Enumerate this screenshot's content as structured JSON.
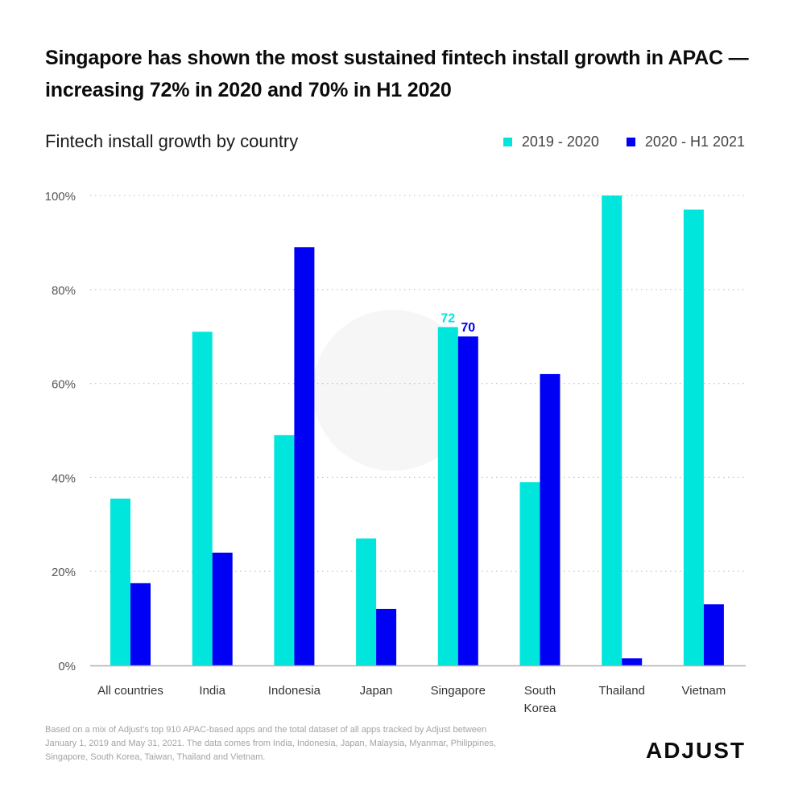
{
  "title": "Singapore has shown the most sustained fintech install growth in APAC — increasing 72% in 2020 and 70% in H1 2020",
  "subtitle": "Fintech install growth by country",
  "footnote": "Based on a mix of Adjust’s top 910 APAC-based apps and the total dataset of all apps tracked by Adjust between January 1, 2019 and May 31, 2021. The data comes from India, Indonesia, Japan, Malaysia, Myanmar, Philippines, Singapore, South Korea, Taiwan, Thailand and Vietnam.",
  "logo": "ADJUST",
  "colors": {
    "series1": "#00e6dc",
    "series2": "#0000f5",
    "grid": "#c8c8c8",
    "axis": "#b0b0b0",
    "tick_text": "#555555"
  },
  "chart_data": {
    "type": "bar",
    "title": "Fintech install growth by country",
    "xlabel": "",
    "ylabel": "",
    "ylim": [
      0,
      100
    ],
    "yticks": [
      0,
      20,
      40,
      60,
      80,
      100
    ],
    "ytick_labels": [
      "0%",
      "20%",
      "40%",
      "60%",
      "80%",
      "100%"
    ],
    "grid": true,
    "legend_position": "top-right",
    "categories": [
      "All countries",
      "India",
      "Indonesia",
      "Japan",
      "Singapore",
      "South Korea",
      "Thailand",
      "Vietnam"
    ],
    "category_lines": [
      [
        "All countries"
      ],
      [
        "India"
      ],
      [
        "Indonesia"
      ],
      [
        "Japan"
      ],
      [
        "Singapore"
      ],
      [
        "South",
        "Korea"
      ],
      [
        "Thailand"
      ],
      [
        "Vietnam"
      ]
    ],
    "series": [
      {
        "name": "2019 - 2020",
        "values": [
          35.5,
          71,
          49,
          27,
          72,
          39,
          100,
          97
        ]
      },
      {
        "name": "2020 - H1 2021",
        "values": [
          17.5,
          24,
          89,
          12,
          70,
          62,
          1.5,
          13
        ]
      }
    ],
    "annotations": [
      {
        "category": "Singapore",
        "series": 0,
        "text": "72"
      },
      {
        "category": "Singapore",
        "series": 1,
        "text": "70"
      }
    ]
  }
}
